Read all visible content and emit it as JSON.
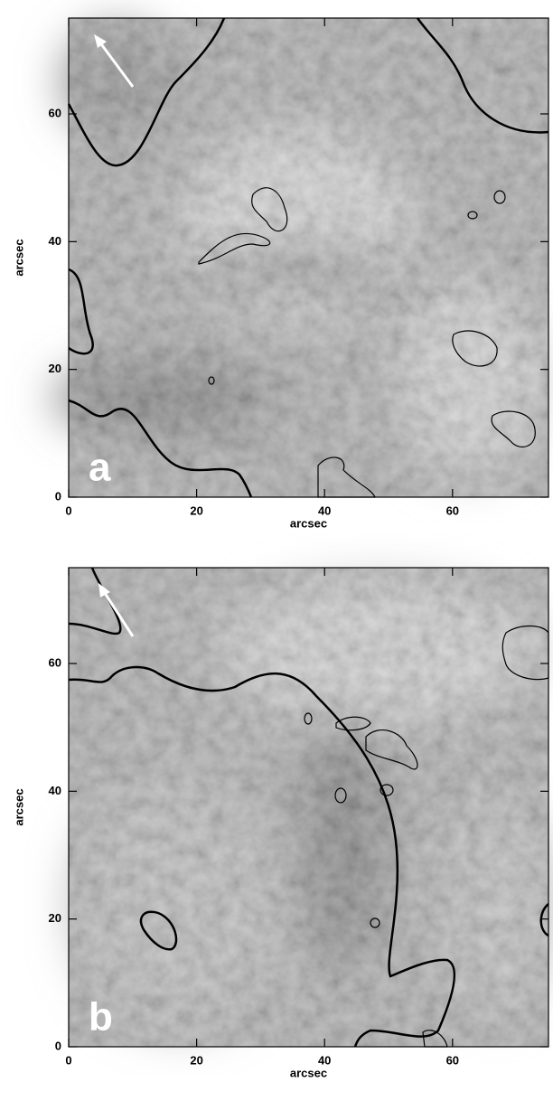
{
  "chart_data": [
    {
      "type": "image",
      "panel_label": "a",
      "xlabel": "arcsec",
      "ylabel": "arcsec",
      "xlim": [
        0,
        75
      ],
      "ylim": [
        0,
        75
      ],
      "xticks": [
        0,
        20,
        40,
        60
      ],
      "yticks": [
        0,
        20,
        40,
        60
      ]
    },
    {
      "type": "image",
      "panel_label": "b",
      "xlabel": "arcsec",
      "ylabel": "arcsec",
      "xlim": [
        0,
        75
      ],
      "ylim": [
        0,
        75
      ],
      "xticks": [
        0,
        20,
        40,
        60
      ],
      "yticks": [
        0,
        20,
        40,
        60
      ]
    }
  ]
}
